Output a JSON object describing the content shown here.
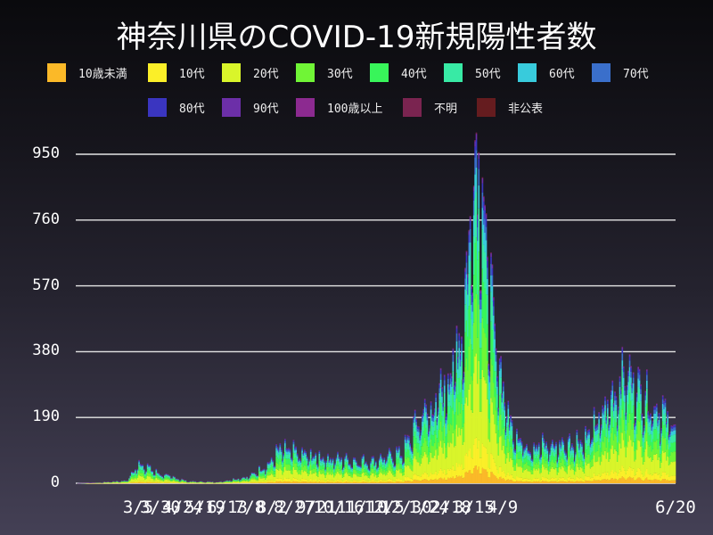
{
  "title": "神奈川県のCOVID-19新規陽性者数",
  "legend": [
    {
      "label": "10歳未満",
      "color": "#fbb928"
    },
    {
      "label": "10代",
      "color": "#fbef28"
    },
    {
      "label": "20代",
      "color": "#d9f52a"
    },
    {
      "label": "30代",
      "color": "#70f536"
    },
    {
      "label": "40代",
      "color": "#38f55a"
    },
    {
      "label": "50代",
      "color": "#38eaa5"
    },
    {
      "label": "60代",
      "color": "#38cbdc"
    },
    {
      "label": "70代",
      "color": "#3a6fcb"
    },
    {
      "label": "80代",
      "color": "#3a35c0"
    },
    {
      "label": "90代",
      "color": "#6c2fa8"
    },
    {
      "label": "100歳以上",
      "color": "#8c2a90"
    },
    {
      "label": "不明",
      "color": "#7a2450"
    },
    {
      "label": "非公表",
      "color": "#651c1f"
    }
  ],
  "chart_data": {
    "type": "bar",
    "stacked": true,
    "title": "神奈川県のCOVID-19新規陽性者数",
    "xlabel": "",
    "ylabel": "",
    "ylim": [
      0,
      990
    ],
    "yticks": [
      0,
      190,
      380,
      570,
      760,
      950
    ],
    "xticks": [
      "3/5",
      "3/30",
      "4/24",
      "5/19",
      "6/13",
      "7/8",
      "8/2",
      "8/27",
      "9/21",
      "10/16",
      "11/10",
      "12/5",
      "12/30",
      "1/24",
      "2/18",
      "3/15",
      "4/9",
      "6/20"
    ],
    "grid": "horizontal",
    "legend_position": "top",
    "series_names": [
      "10歳未満",
      "10代",
      "20代",
      "30代",
      "40代",
      "50代",
      "60代",
      "70代",
      "80代",
      "90代",
      "100歳以上",
      "不明",
      "非公表"
    ],
    "series_share_typical": [
      0.05,
      0.08,
      0.24,
      0.17,
      0.16,
      0.13,
      0.07,
      0.05,
      0.03,
      0.015,
      0.002,
      0.003,
      0.0
    ],
    "daily_total_anchors": [
      {
        "date": "2/18",
        "value": 0
      },
      {
        "date": "3/5",
        "value": 2
      },
      {
        "date": "3/30",
        "value": 8
      },
      {
        "date": "4/10",
        "value": 60
      },
      {
        "date": "4/24",
        "value": 30
      },
      {
        "date": "5/19",
        "value": 6
      },
      {
        "date": "6/13",
        "value": 4
      },
      {
        "date": "7/8",
        "value": 20
      },
      {
        "date": "7/25",
        "value": 60
      },
      {
        "date": "8/2",
        "value": 100
      },
      {
        "date": "8/27",
        "value": 80
      },
      {
        "date": "9/21",
        "value": 70
      },
      {
        "date": "10/16",
        "value": 65
      },
      {
        "date": "11/10",
        "value": 90
      },
      {
        "date": "11/25",
        "value": 200
      },
      {
        "date": "12/5",
        "value": 220
      },
      {
        "date": "12/20",
        "value": 330
      },
      {
        "date": "12/30",
        "value": 480
      },
      {
        "date": "1/8",
        "value": 991
      },
      {
        "date": "1/12",
        "value": 950
      },
      {
        "date": "1/18",
        "value": 600
      },
      {
        "date": "1/24",
        "value": 420
      },
      {
        "date": "2/5",
        "value": 180
      },
      {
        "date": "2/18",
        "value": 110
      },
      {
        "date": "3/15",
        "value": 110
      },
      {
        "date": "4/9",
        "value": 130
      },
      {
        "date": "4/25",
        "value": 220
      },
      {
        "date": "5/10",
        "value": 330
      },
      {
        "date": "5/25",
        "value": 260
      },
      {
        "date": "6/20",
        "value": 170
      }
    ],
    "peak": {
      "date": "1/8",
      "value": 991
    }
  }
}
